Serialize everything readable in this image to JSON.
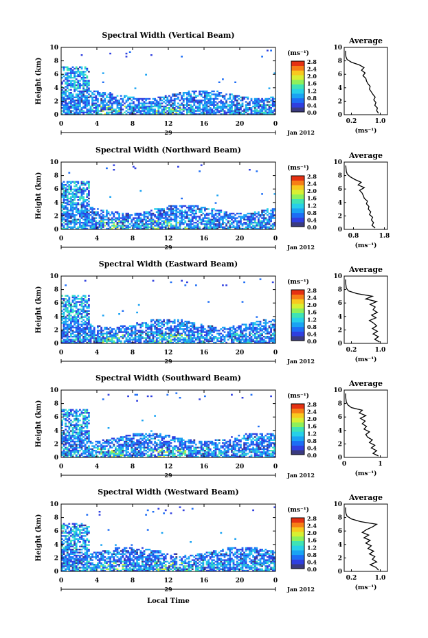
{
  "common": {
    "ylabel": "Height (km)",
    "y_ticks": [
      "0",
      "2",
      "4",
      "6",
      "8",
      "10"
    ],
    "x_ticks": [
      "0",
      "4",
      "8",
      "12",
      "16",
      "20",
      "0"
    ],
    "day_label": "29",
    "month_label": "Jan 2012",
    "colorbar_unit": "(ms⁻¹)",
    "colorbar_ticks": [
      "0.0",
      "0.4",
      "0.8",
      "1.2",
      "1.6",
      "2.0",
      "2.4",
      "2.8"
    ],
    "avg_title": "Average",
    "avg_xlabel": "(ms⁻¹)",
    "xlabel": "Local Time",
    "colors": [
      "#3a3a80",
      "#2f3fe0",
      "#1d6df5",
      "#1aa3f3",
      "#27d0e8",
      "#3fe3b5",
      "#8ef05a",
      "#d8ef32",
      "#f8c91e",
      "#f77e16",
      "#e53112"
    ]
  },
  "chart_data": [
    {
      "type": "heatmap",
      "title": "Spectral Width (Vertical Beam)",
      "x_range": [
        0,
        24
      ],
      "y_range": [
        0,
        10
      ],
      "color_range": [
        0,
        2.8
      ],
      "avg_ticks": [
        "0.2",
        "1.0"
      ],
      "avg_xlim": [
        0,
        1.2
      ],
      "avg_tick_values": [
        0.2,
        1.0
      ],
      "avg_profile": {
        "height": [
          0.2,
          0.6,
          1.0,
          1.4,
          1.8,
          2.2,
          2.6,
          3.0,
          3.4,
          3.8,
          4.2,
          4.6,
          5.0,
          5.4,
          5.8,
          6.2,
          6.6,
          7.0,
          7.4,
          7.8,
          8.2,
          8.6,
          9.0,
          9.5
        ],
        "value": [
          0.95,
          0.9,
          0.92,
          0.85,
          0.88,
          0.82,
          0.86,
          0.8,
          0.75,
          0.7,
          0.72,
          0.66,
          0.62,
          0.6,
          0.52,
          0.58,
          0.48,
          0.55,
          0.42,
          0.2,
          0.08,
          0.05,
          0.04,
          0.04
        ]
      }
    },
    {
      "type": "heatmap",
      "title": "Spectral Width (Northward Beam)",
      "x_range": [
        0,
        24
      ],
      "y_range": [
        0,
        10
      ],
      "color_range": [
        0,
        2.8
      ],
      "avg_ticks": [
        "0.8",
        "1.8"
      ],
      "avg_xlim": [
        0.5,
        1.9
      ],
      "avg_tick_values": [
        0.8,
        1.8
      ],
      "avg_profile": {
        "height": [
          0.2,
          0.6,
          1.0,
          1.4,
          1.8,
          2.2,
          2.6,
          3.0,
          3.4,
          3.8,
          4.2,
          4.6,
          5.0,
          5.4,
          5.8,
          6.2,
          6.6,
          7.0,
          7.4,
          7.8,
          8.2,
          8.6,
          9.0,
          9.5
        ],
        "value": [
          1.5,
          1.4,
          1.45,
          1.38,
          1.42,
          1.32,
          1.36,
          1.28,
          1.3,
          1.22,
          1.25,
          1.15,
          1.12,
          1.08,
          1.0,
          1.15,
          0.95,
          1.05,
          0.85,
          0.7,
          0.6,
          0.57,
          0.56,
          0.55
        ]
      }
    },
    {
      "type": "heatmap",
      "title": "Spectral Width (Eastward Beam)",
      "x_range": [
        0,
        24
      ],
      "y_range": [
        0,
        10
      ],
      "color_range": [
        0,
        2.8
      ],
      "avg_ticks": [
        "0.2",
        "1.0"
      ],
      "avg_xlim": [
        0,
        1.2
      ],
      "avg_tick_values": [
        0.2,
        1.0
      ],
      "avg_profile": {
        "height": [
          0.2,
          0.6,
          1.0,
          1.4,
          1.8,
          2.2,
          2.6,
          3.0,
          3.4,
          3.8,
          4.2,
          4.6,
          5.0,
          5.4,
          5.8,
          6.2,
          6.6,
          7.0,
          7.4,
          7.8,
          8.2,
          8.6,
          9.0,
          9.5
        ],
        "value": [
          0.98,
          0.85,
          0.95,
          0.8,
          0.92,
          0.78,
          0.9,
          0.82,
          0.7,
          0.88,
          0.76,
          0.92,
          0.8,
          0.86,
          0.72,
          0.9,
          0.6,
          0.78,
          0.35,
          0.12,
          0.06,
          0.05,
          0.04,
          0.04
        ]
      }
    },
    {
      "type": "heatmap",
      "title": "Spectral Width (Southward Beam)",
      "x_range": [
        0,
        24
      ],
      "y_range": [
        0,
        10
      ],
      "color_range": [
        0,
        2.8
      ],
      "avg_ticks": [
        "0",
        "1"
      ],
      "avg_xlim": [
        0,
        1.2
      ],
      "avg_tick_values": [
        0,
        1
      ],
      "avg_profile": {
        "height": [
          0.2,
          0.6,
          1.0,
          1.4,
          1.8,
          2.2,
          2.6,
          3.0,
          3.4,
          3.8,
          4.2,
          4.6,
          5.0,
          5.4,
          5.8,
          6.2,
          6.6,
          7.0,
          7.4,
          7.8,
          8.2,
          8.6,
          9.0,
          9.5
        ],
        "value": [
          0.95,
          0.8,
          0.9,
          0.75,
          0.85,
          0.7,
          0.78,
          0.65,
          0.6,
          0.7,
          0.55,
          0.62,
          0.5,
          0.58,
          0.45,
          0.6,
          0.42,
          0.5,
          0.2,
          0.1,
          0.06,
          0.05,
          0.04,
          0.04
        ]
      }
    },
    {
      "type": "heatmap",
      "title": "Spectral Width (Westward Beam)",
      "x_range": [
        0,
        24
      ],
      "y_range": [
        0,
        10
      ],
      "color_range": [
        0,
        2.8
      ],
      "avg_ticks": [
        "0.2",
        "1.0"
      ],
      "avg_xlim": [
        0,
        1.2
      ],
      "avg_tick_values": [
        0.2,
        1.0
      ],
      "avg_profile": {
        "height": [
          0.2,
          0.6,
          1.0,
          1.4,
          1.8,
          2.2,
          2.6,
          3.0,
          3.4,
          3.8,
          4.2,
          4.6,
          5.0,
          5.4,
          5.8,
          6.2,
          6.6,
          7.0,
          7.4,
          7.8,
          8.2,
          8.6,
          9.0,
          9.5
        ],
        "value": [
          0.95,
          0.88,
          0.72,
          0.9,
          0.78,
          0.85,
          0.7,
          0.82,
          0.66,
          0.75,
          0.6,
          0.72,
          0.55,
          0.68,
          0.5,
          0.62,
          0.78,
          0.9,
          0.45,
          0.2,
          0.08,
          0.05,
          0.04,
          0.04
        ]
      }
    }
  ]
}
